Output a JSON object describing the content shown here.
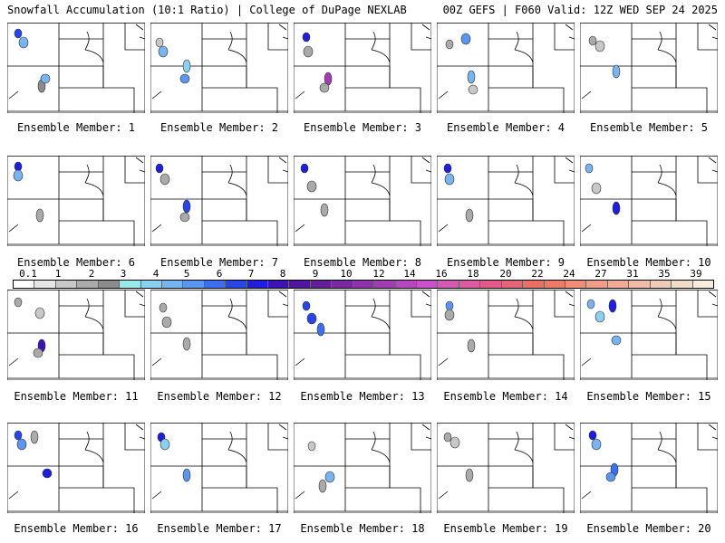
{
  "header": {
    "title_left": "Snowfall Accumulation (10:1 Ratio) | College of DuPage NEXLAB",
    "title_right": "00Z GEFS | F060 Valid: 12Z WED SEP 24 2025"
  },
  "panels": [
    {
      "label": "Ensemble Member: 1"
    },
    {
      "label": "Ensemble Member: 2"
    },
    {
      "label": "Ensemble Member: 3"
    },
    {
      "label": "Ensemble Member: 4"
    },
    {
      "label": "Ensemble Member: 5"
    },
    {
      "label": "Ensemble Member: 6"
    },
    {
      "label": "Ensemble Member: 7"
    },
    {
      "label": "Ensemble Member: 8"
    },
    {
      "label": "Ensemble Member: 9"
    },
    {
      "label": "Ensemble Member: 10"
    },
    {
      "label": "Ensemble Member: 11"
    },
    {
      "label": "Ensemble Member: 12"
    },
    {
      "label": "Ensemble Member: 13"
    },
    {
      "label": "Ensemble Member: 14"
    },
    {
      "label": "Ensemble Member: 15"
    },
    {
      "label": "Ensemble Member: 16"
    },
    {
      "label": "Ensemble Member: 17"
    },
    {
      "label": "Ensemble Member: 18"
    },
    {
      "label": "Ensemble Member: 19"
    },
    {
      "label": "Ensemble Member: 20"
    }
  ],
  "colorbar": {
    "colors": [
      "#ffffff",
      "#e6e6e6",
      "#c8c8c8",
      "#aaaaaa",
      "#8c8c8c",
      "#9be8e8",
      "#8ad0f0",
      "#78b4f0",
      "#5a96f0",
      "#3c6ef0",
      "#2846e6",
      "#1e1edc",
      "#3c14b4",
      "#5014a0",
      "#641e96",
      "#7828a0",
      "#8c32aa",
      "#a03cb4",
      "#b446be",
      "#c850c8",
      "#d25ab4",
      "#dc5aa0",
      "#e05a8c",
      "#e46478",
      "#e87064",
      "#ec7c68",
      "#f08c78",
      "#f09c88",
      "#f0ac98",
      "#f0bca8",
      "#f0ccb8",
      "#f0dcc8",
      "#f8ecdc"
    ],
    "tick_labels": [
      "0.1",
      "1",
      "2",
      "3",
      "4",
      "5",
      "6",
      "7",
      "8",
      "9",
      "10",
      "12",
      "14",
      "16",
      "18",
      "20",
      "22",
      "24",
      "27",
      "31",
      "35",
      "39"
    ]
  }
}
